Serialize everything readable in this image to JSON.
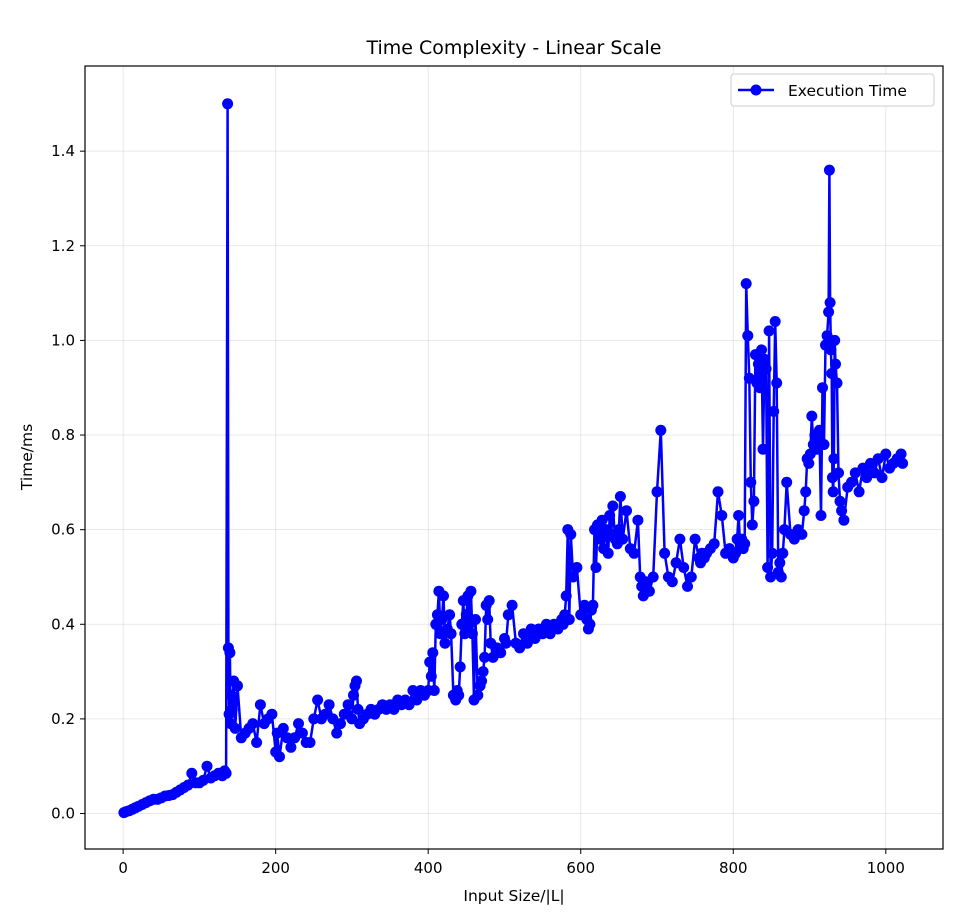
{
  "chart_data": {
    "type": "line",
    "title": "Time Complexity - Linear Scale",
    "xlabel": "Input Size/|L|",
    "ylabel": "Time/ms",
    "xlim": [
      -50,
      1075
    ],
    "ylim": [
      -0.075,
      1.58
    ],
    "xticks": [
      0,
      200,
      400,
      600,
      800,
      1000
    ],
    "yticks": [
      0.0,
      0.2,
      0.4,
      0.6,
      0.8,
      1.0,
      1.2,
      1.4
    ],
    "grid": true,
    "legend_position": "top-right",
    "series": [
      {
        "name": "Execution Time",
        "color": "#0000ff",
        "marker": "circle",
        "x": [
          1,
          4,
          8,
          12,
          16,
          20,
          25,
          30,
          35,
          40,
          45,
          50,
          55,
          60,
          65,
          70,
          75,
          80,
          85,
          90,
          95,
          100,
          105,
          110,
          115,
          120,
          125,
          130,
          133,
          135,
          137,
          138,
          139,
          140,
          141,
          142,
          143,
          145,
          147,
          150,
          155,
          160,
          165,
          170,
          175,
          180,
          185,
          190,
          195,
          200,
          202,
          205,
          210,
          215,
          220,
          225,
          230,
          235,
          240,
          245,
          250,
          255,
          260,
          265,
          270,
          275,
          280,
          285,
          290,
          295,
          300,
          302,
          304,
          306,
          308,
          310,
          315,
          320,
          325,
          330,
          335,
          340,
          345,
          350,
          355,
          360,
          365,
          370,
          375,
          380,
          385,
          390,
          395,
          400,
          402,
          404,
          406,
          408,
          410,
          412,
          414,
          416,
          418,
          420,
          422,
          425,
          428,
          430,
          433,
          436,
          438,
          440,
          442,
          444,
          446,
          448,
          450,
          452,
          454,
          456,
          458,
          460,
          462,
          465,
          468,
          470,
          472,
          474,
          476,
          478,
          480,
          482,
          485,
          490,
          495,
          500,
          502,
          505,
          510,
          515,
          520,
          525,
          530,
          535,
          540,
          545,
          550,
          555,
          560,
          565,
          570,
          575,
          577,
          579,
          581,
          583,
          585,
          587,
          590,
          595,
          600,
          605,
          608,
          610,
          612,
          614,
          616,
          618,
          620,
          622,
          625,
          628,
          630,
          633,
          636,
          638,
          640,
          642,
          645,
          648,
          650,
          652,
          655,
          660,
          665,
          670,
          675,
          678,
          680,
          682,
          685,
          690,
          695,
          700,
          705,
          710,
          715,
          720,
          725,
          730,
          735,
          740,
          745,
          750,
          755,
          757,
          759,
          762,
          765,
          770,
          775,
          780,
          785,
          790,
          795,
          800,
          803,
          805,
          807,
          809,
          811,
          813,
          815,
          817,
          819,
          821,
          823,
          825,
          827,
          829,
          831,
          833,
          835,
          837,
          839,
          841,
          843,
          845,
          847,
          849,
          851,
          853,
          855,
          857,
          859,
          861,
          863,
          865,
          867,
          870,
          875,
          880,
          885,
          890,
          893,
          895,
          897,
          899,
          901,
          903,
          905,
          907,
          910,
          913,
          915,
          917,
          919,
          921,
          923,
          925,
          926,
          927,
          928,
          929,
          930,
          931,
          932,
          933,
          934,
          936,
          938,
          940,
          942,
          945,
          950,
          955,
          960,
          965,
          970,
          975,
          980,
          985,
          990,
          995,
          1000,
          1005,
          1010,
          1015,
          1020,
          1022
        ],
        "y": [
          0.002,
          0.004,
          0.006,
          0.009,
          0.012,
          0.015,
          0.019,
          0.023,
          0.027,
          0.03,
          0.03,
          0.033,
          0.037,
          0.038,
          0.04,
          0.045,
          0.05,
          0.055,
          0.06,
          0.085,
          0.065,
          0.065,
          0.07,
          0.1,
          0.075,
          0.08,
          0.085,
          0.08,
          0.09,
          0.085,
          1.5,
          0.35,
          0.21,
          0.34,
          0.19,
          0.25,
          0.22,
          0.28,
          0.18,
          0.27,
          0.16,
          0.17,
          0.18,
          0.19,
          0.15,
          0.23,
          0.19,
          0.2,
          0.21,
          0.13,
          0.17,
          0.12,
          0.18,
          0.16,
          0.14,
          0.16,
          0.19,
          0.17,
          0.15,
          0.15,
          0.2,
          0.24,
          0.2,
          0.21,
          0.23,
          0.2,
          0.17,
          0.19,
          0.21,
          0.23,
          0.2,
          0.25,
          0.27,
          0.28,
          0.22,
          0.19,
          0.2,
          0.21,
          0.22,
          0.21,
          0.22,
          0.23,
          0.22,
          0.23,
          0.22,
          0.24,
          0.23,
          0.24,
          0.23,
          0.26,
          0.24,
          0.26,
          0.25,
          0.26,
          0.32,
          0.29,
          0.34,
          0.26,
          0.4,
          0.42,
          0.47,
          0.38,
          0.41,
          0.46,
          0.36,
          0.39,
          0.42,
          0.38,
          0.25,
          0.24,
          0.26,
          0.25,
          0.31,
          0.4,
          0.45,
          0.38,
          0.42,
          0.46,
          0.4,
          0.47,
          0.38,
          0.24,
          0.41,
          0.25,
          0.27,
          0.28,
          0.3,
          0.33,
          0.44,
          0.41,
          0.45,
          0.36,
          0.33,
          0.35,
          0.34,
          0.37,
          0.36,
          0.42,
          0.44,
          0.36,
          0.35,
          0.38,
          0.36,
          0.39,
          0.37,
          0.39,
          0.38,
          0.4,
          0.38,
          0.4,
          0.39,
          0.41,
          0.4,
          0.42,
          0.46,
          0.6,
          0.41,
          0.59,
          0.5,
          0.52,
          0.42,
          0.44,
          0.41,
          0.39,
          0.4,
          0.43,
          0.44,
          0.6,
          0.52,
          0.61,
          0.58,
          0.62,
          0.56,
          0.6,
          0.55,
          0.63,
          0.59,
          0.65,
          0.58,
          0.57,
          0.6,
          0.67,
          0.58,
          0.64,
          0.56,
          0.55,
          0.62,
          0.5,
          0.48,
          0.46,
          0.49,
          0.47,
          0.5,
          0.68,
          0.81,
          0.55,
          0.5,
          0.49,
          0.53,
          0.58,
          0.52,
          0.48,
          0.5,
          0.58,
          0.54,
          0.53,
          0.55,
          0.54,
          0.55,
          0.56,
          0.57,
          0.68,
          0.63,
          0.55,
          0.56,
          0.54,
          0.55,
          0.58,
          0.63,
          0.57,
          0.58,
          0.56,
          0.57,
          1.12,
          1.01,
          0.92,
          0.7,
          0.61,
          0.66,
          0.97,
          0.91,
          0.95,
          0.9,
          0.98,
          0.77,
          0.96,
          0.94,
          0.52,
          1.02,
          0.5,
          0.55,
          0.85,
          1.04,
          0.91,
          0.51,
          0.53,
          0.5,
          0.55,
          0.6,
          0.7,
          0.59,
          0.58,
          0.6,
          0.59,
          0.64,
          0.68,
          0.75,
          0.74,
          0.76,
          0.84,
          0.78,
          0.8,
          0.77,
          0.81,
          0.63,
          0.9,
          0.78,
          0.99,
          1.01,
          1.06,
          1.36,
          1.08,
          0.98,
          0.93,
          0.71,
          0.68,
          0.75,
          1.0,
          0.95,
          0.91,
          0.72,
          0.66,
          0.64,
          0.62,
          0.69,
          0.7,
          0.72,
          0.68,
          0.73,
          0.71,
          0.74,
          0.72,
          0.75,
          0.71,
          0.76,
          0.73,
          0.74,
          0.75,
          0.76,
          0.74
        ]
      }
    ]
  }
}
